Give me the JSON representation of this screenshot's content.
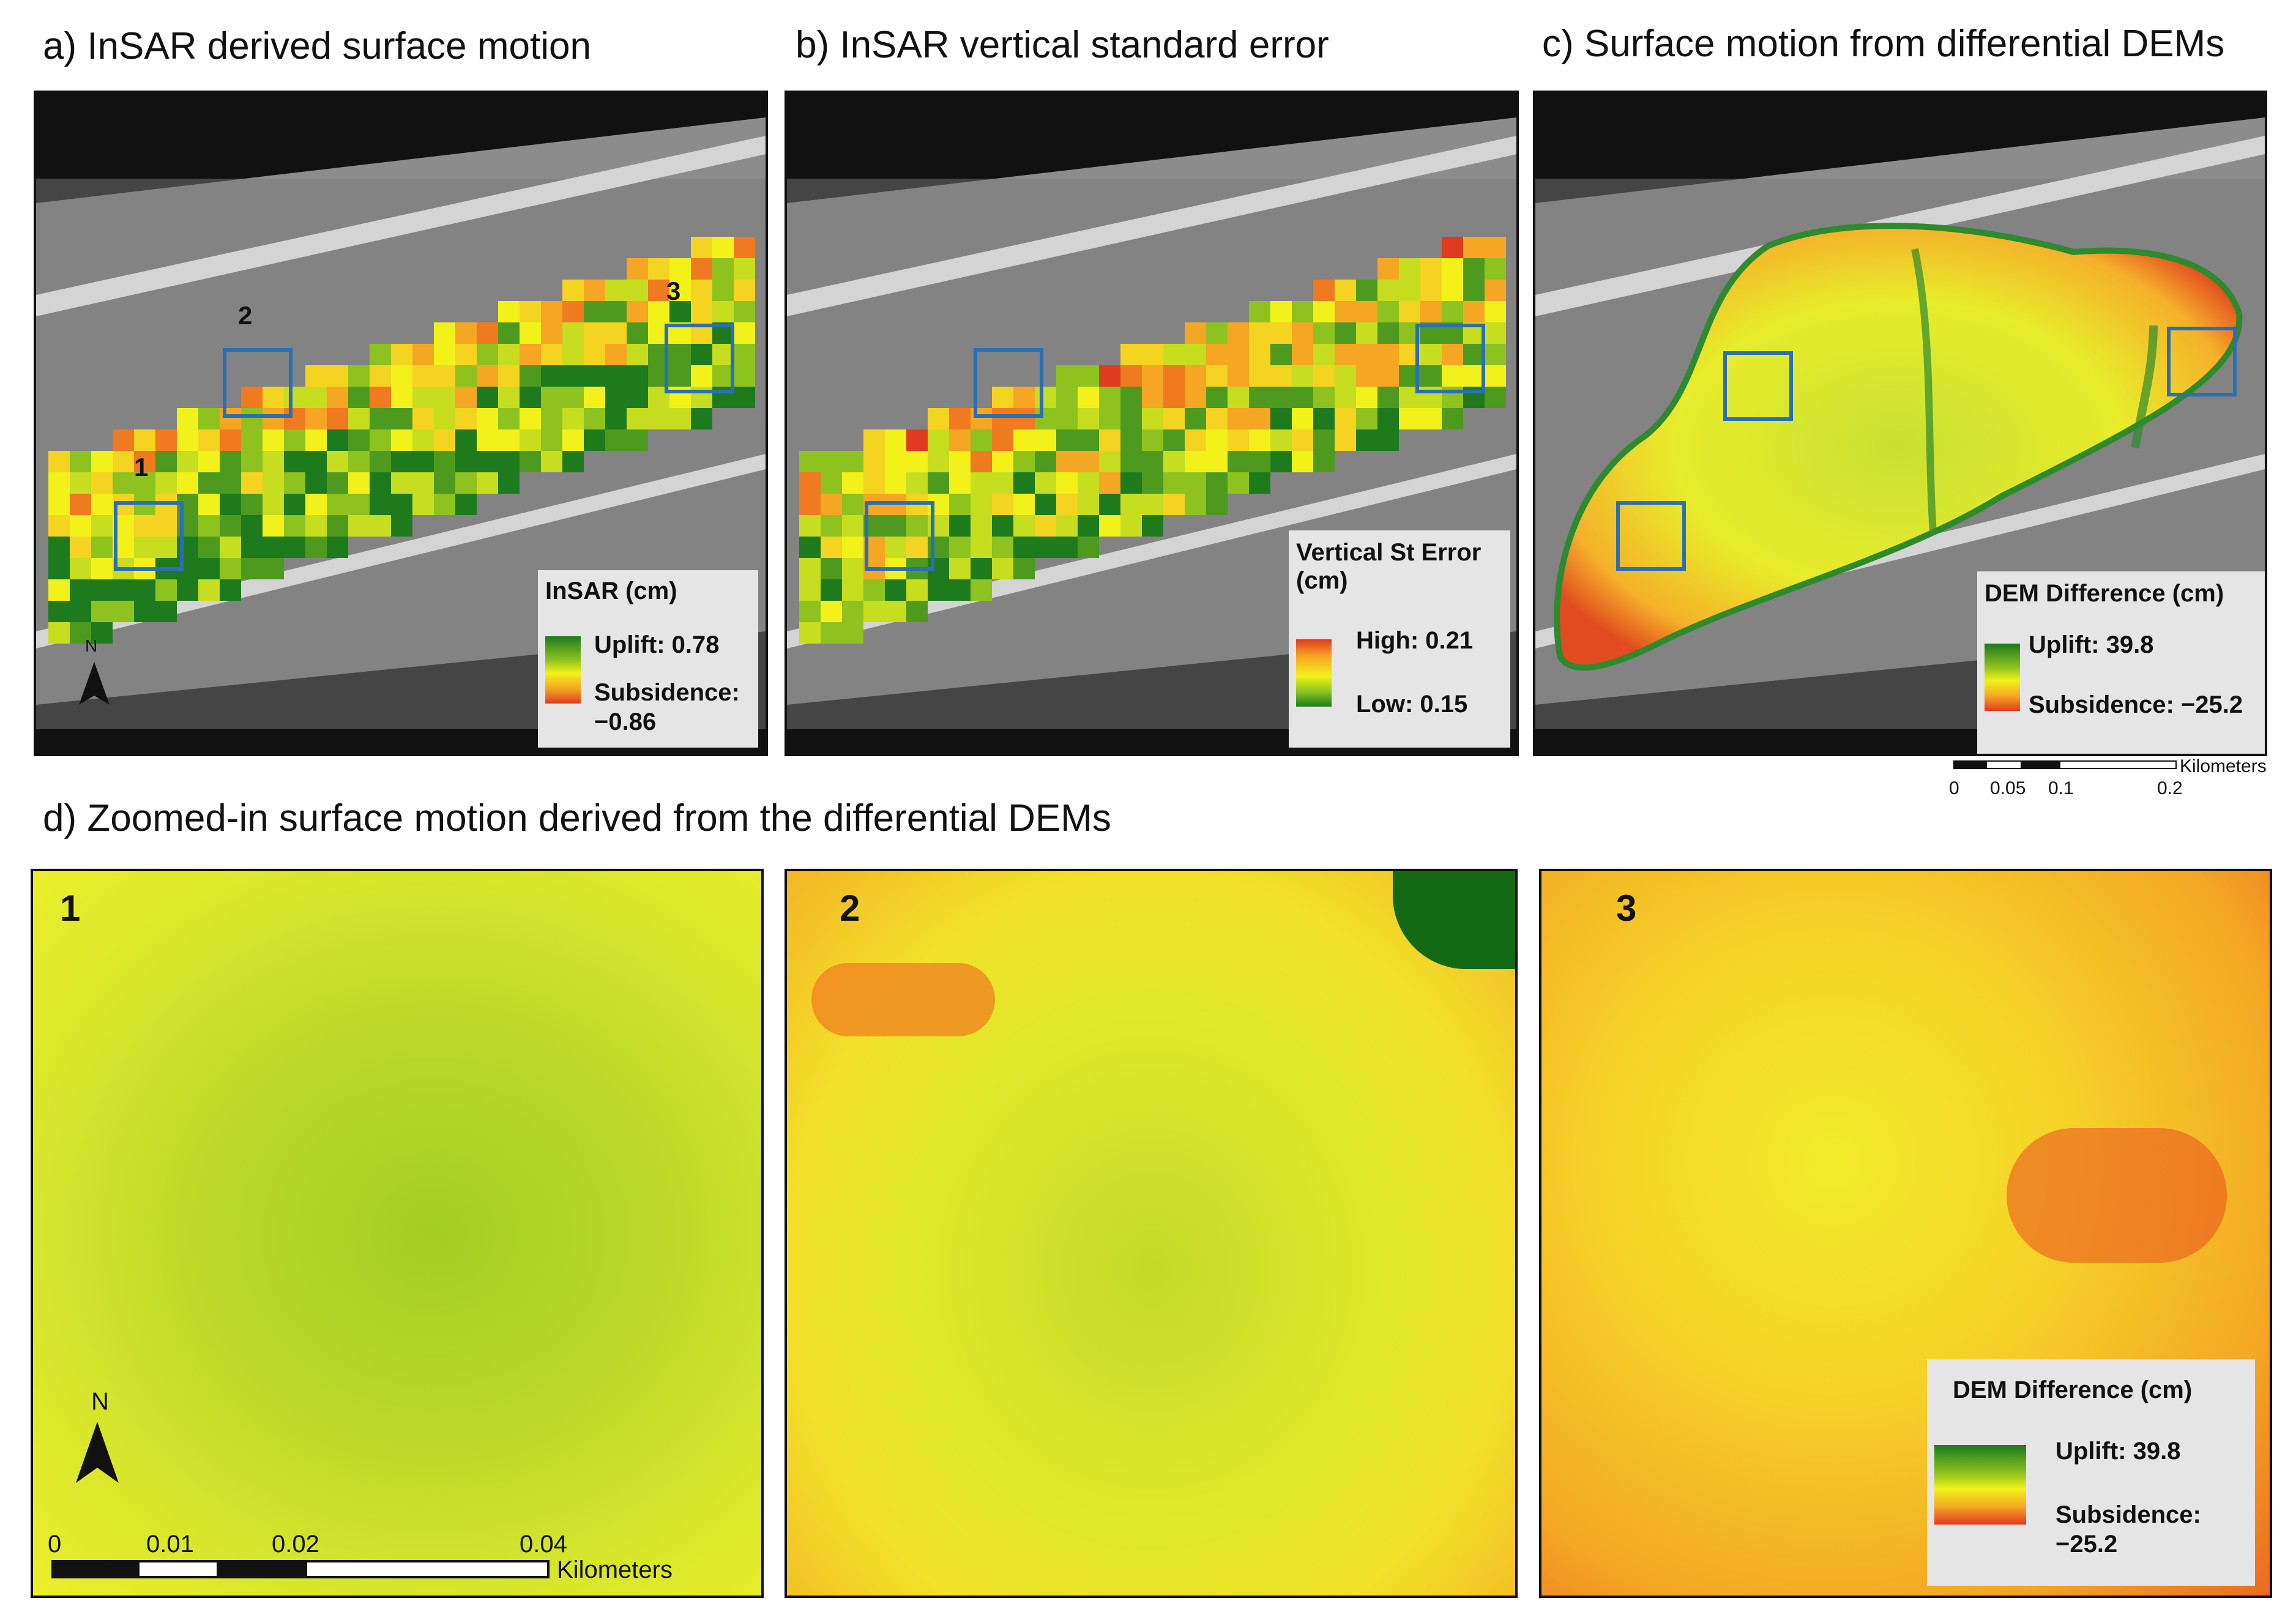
{
  "panels": {
    "a": {
      "title": "a) InSAR derived surface motion",
      "legend_title": "InSAR (cm)",
      "uplift": "Uplift: 0.78",
      "subsidence": "Subsidence:",
      "subsidence_value": "−0.86",
      "box_labels": [
        "1",
        "2",
        "3"
      ]
    },
    "b": {
      "title": "b) InSAR vertical standard error",
      "legend_title_1": "Vertical St Error",
      "legend_title_2": "(cm)",
      "high": "High: 0.21",
      "low": "Low: 0.15"
    },
    "c": {
      "title": "c) Surface motion from differential DEMs",
      "legend_title": "DEM Difference (cm)",
      "uplift": "Uplift: 39.8",
      "subsidence": "Subsidence: −25.2"
    },
    "d": {
      "title": "d) Zoomed-in surface motion derived from the differential DEMs",
      "tiles": [
        "1",
        "2",
        "3"
      ],
      "legend_title": "DEM Difference (cm)",
      "uplift": "Uplift: 39.8",
      "subsidence": "Subsidence:",
      "subsidence_value": "−25.2"
    }
  },
  "north_arrow": "N",
  "scalebar_top": {
    "ticks": [
      "0",
      "0.05",
      "0.1",
      "0.2"
    ],
    "unit": "Kilometers"
  },
  "scalebar_bottom": {
    "ticks": [
      "0",
      "0.01",
      "0.02",
      "0.04"
    ],
    "unit": "Kilometers"
  },
  "colors": {
    "uplift": "#1d7a1d",
    "neutral": "#f2f21a",
    "subsidence": "#e23a1f",
    "box": "#2a6fb5"
  }
}
